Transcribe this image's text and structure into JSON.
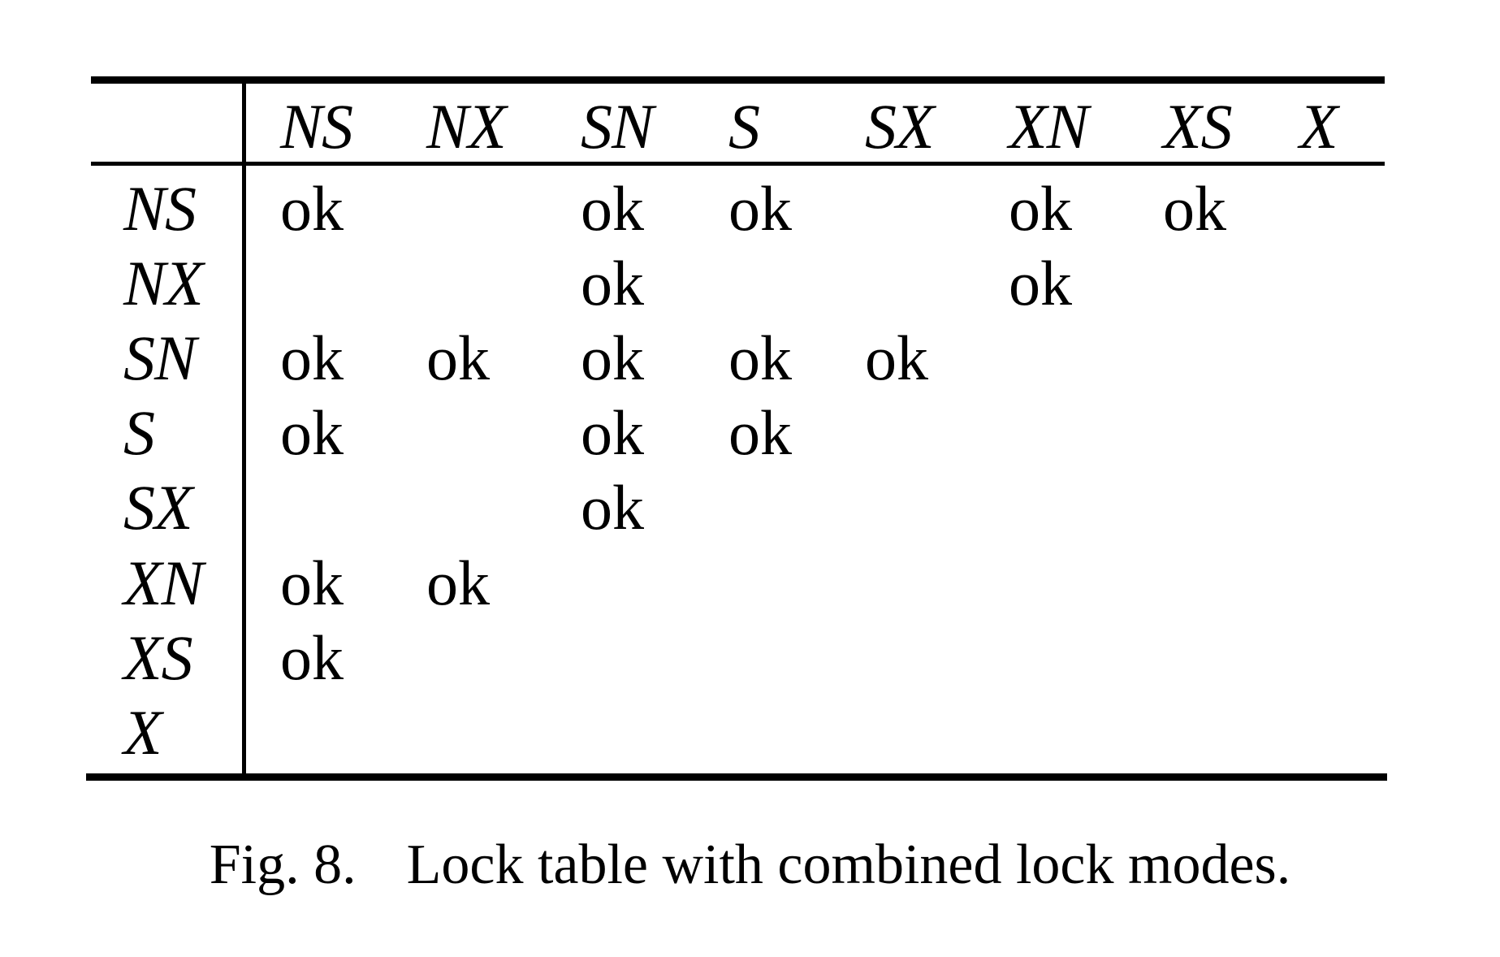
{
  "table": {
    "column_headers": [
      "NS",
      "NX",
      "SN",
      "S",
      "SX",
      "XN",
      "XS",
      "X"
    ],
    "row_headers": [
      "NS",
      "NX",
      "SN",
      "S",
      "SX",
      "XN",
      "XS",
      "X"
    ],
    "rows": [
      [
        "ok",
        "",
        "ok",
        "ok",
        "",
        "ok",
        "ok",
        ""
      ],
      [
        "",
        "",
        "ok",
        "",
        "",
        "ok",
        "",
        ""
      ],
      [
        "ok",
        "ok",
        "ok",
        "ok",
        "ok",
        "",
        "",
        ""
      ],
      [
        "ok",
        "",
        "ok",
        "ok",
        "",
        "",
        "",
        ""
      ],
      [
        "",
        "",
        "ok",
        "",
        "",
        "",
        "",
        ""
      ],
      [
        "ok",
        "ok",
        "",
        "",
        "",
        "",
        "",
        ""
      ],
      [
        "ok",
        "",
        "",
        "",
        "",
        "",
        "",
        ""
      ],
      [
        "",
        "",
        "",
        "",
        "",
        "",
        "",
        ""
      ]
    ]
  },
  "caption": {
    "label": "Fig. 8.",
    "text": "Lock table with combined lock modes."
  }
}
